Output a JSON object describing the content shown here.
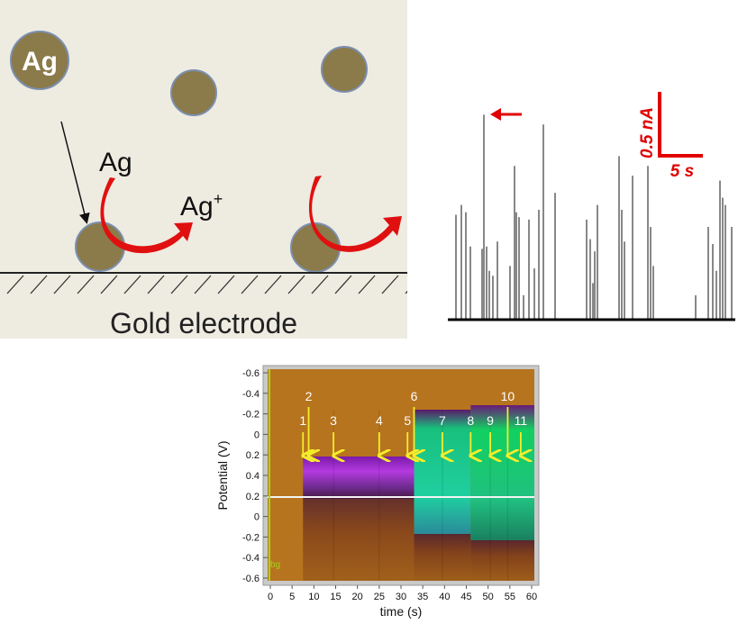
{
  "schematic": {
    "particle_label": "Ag",
    "reactant_label": "Ag",
    "product_label": "Ag",
    "product_charge": "+",
    "electrode_label": "Gold electrode",
    "colors": {
      "background": "#eeebe1",
      "particle": "#8b7a4a",
      "particle_edge": "#7b8fb0",
      "arrow": "#e01010"
    }
  },
  "current_trace": {
    "scale_current": "0.5 nA",
    "scale_time": "5 s",
    "colors": {
      "trace": "#000000",
      "scale": "#e00000"
    },
    "spike_heights_nA": [
      0.43,
      0.47,
      0.44,
      0.3,
      0.29,
      0.84,
      0.3,
      0.2,
      0.18,
      0.32,
      0.22,
      0.63,
      0.44,
      0.42,
      0.1,
      0.41,
      0.21,
      0.45,
      0.8,
      0.52,
      0.41,
      0.33,
      0.15,
      0.28,
      0.47,
      0.67,
      0.45,
      0.32,
      0.59,
      0.63,
      0.38,
      0.22,
      0.1,
      0.38,
      0.31,
      0.2,
      0.57,
      0.5,
      0.47,
      0.38
    ]
  },
  "chart_data": {
    "type": "heatmap",
    "xlabel": "time (s)",
    "ylabel": "Potential (V)",
    "x_ticks": [
      "0",
      "5",
      "10",
      "15",
      "20",
      "25",
      "30",
      "35",
      "40",
      "45",
      "50",
      "55",
      "60"
    ],
    "y_ticks": [
      "-0.6",
      "-0.4",
      "-0.2",
      "0",
      "0.2",
      "0.4",
      "0.2",
      "0",
      "-0.2",
      "-0.4",
      "-0.6"
    ],
    "xlim": [
      0,
      60
    ],
    "corner_label": "bg",
    "events": [
      {
        "label": "1",
        "time": 7.5
      },
      {
        "label": "2",
        "time": 8.8
      },
      {
        "label": "3",
        "time": 14.5
      },
      {
        "label": "4",
        "time": 25.0
      },
      {
        "label": "5",
        "time": 31.5
      },
      {
        "label": "6",
        "time": 33.0
      },
      {
        "label": "7",
        "time": 39.5
      },
      {
        "label": "8",
        "time": 46.0
      },
      {
        "label": "9",
        "time": 50.5
      },
      {
        "label": "10",
        "time": 54.5
      },
      {
        "label": "11",
        "time": 57.5
      }
    ],
    "colors": {
      "background": "#b7741e",
      "magenta": "#9a1fc8",
      "green": "#19c07c",
      "arrow": "#f4ee2a"
    }
  }
}
